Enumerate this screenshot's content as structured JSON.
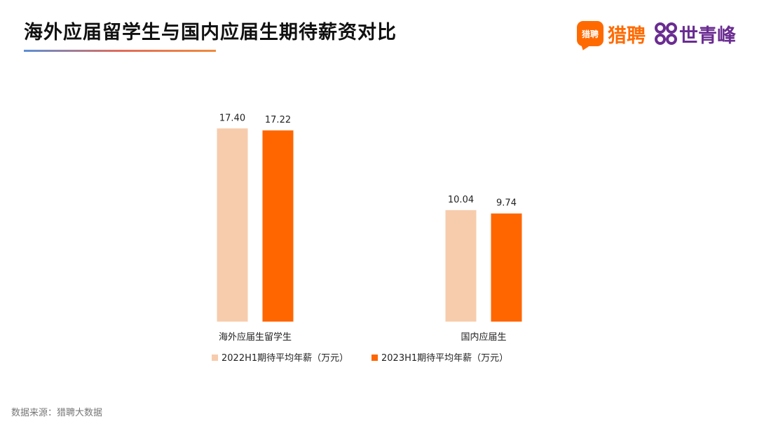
{
  "header": {
    "title": "海外应届留学生与国内应届生期待薪资对比",
    "brand_badge": "猎聘",
    "brand_liepin": "猎聘",
    "brand_sqf": "世青峰"
  },
  "footer": {
    "source": "数据来源：猎聘大数据"
  },
  "colors": {
    "series_2022": "#f7ccac",
    "series_2023": "#ff6600",
    "liepin_orange": "#ff6a00",
    "sqf_purple": "#6a2c91"
  },
  "chart_data": {
    "type": "bar",
    "title": "海外应届留学生与国内应届生期待薪资对比",
    "categories": [
      "海外应届生留学生",
      "国内应届生"
    ],
    "series": [
      {
        "name": "2022H1期待平均年薪（万元）",
        "values": [
          17.4,
          10.04
        ],
        "labels": [
          "17.40",
          "10.04"
        ]
      },
      {
        "name": "2023H1期待平均年薪（万元）",
        "values": [
          17.22,
          9.74
        ],
        "labels": [
          "17.22",
          "9.74"
        ]
      }
    ],
    "ylim": [
      0,
      19.5
    ],
    "grid": false,
    "legend_position": "bottom",
    "xlabel": "",
    "ylabel": ""
  }
}
